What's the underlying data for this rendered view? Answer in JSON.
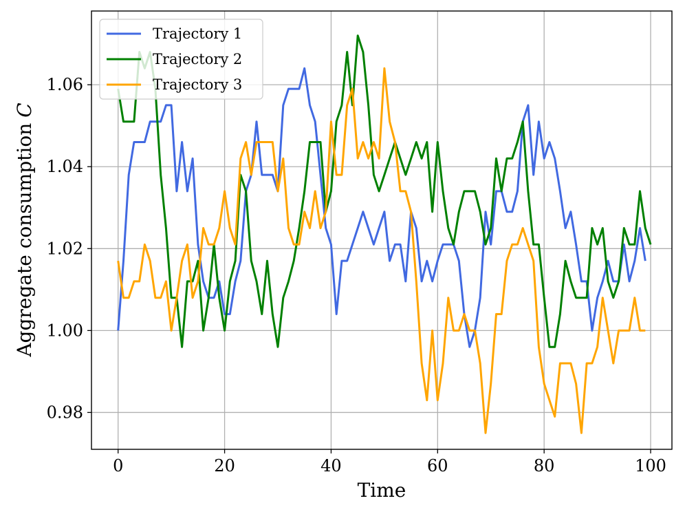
{
  "chart_data": {
    "type": "line",
    "xlabel": "Time",
    "ylabel": "Aggregate consumption",
    "ylabel_symbol": "C",
    "xlim": [
      -5,
      104
    ],
    "ylim": [
      0.971,
      1.078
    ],
    "xticks": [
      0,
      20,
      40,
      60,
      80,
      100
    ],
    "yticks": [
      0.98,
      1.0,
      1.02,
      1.04,
      1.06
    ],
    "xtick_labels": [
      "0",
      "20",
      "40",
      "60",
      "80",
      "100"
    ],
    "ytick_labels": [
      "0.98",
      "1.00",
      "1.02",
      "1.04",
      "1.06"
    ],
    "grid": true,
    "legend_position": "top-left",
    "series": [
      {
        "name": "Trajectory 1",
        "color": "#4169e1",
        "values": [
          1.0,
          1.017,
          1.038,
          1.046,
          1.046,
          1.046,
          1.051,
          1.051,
          1.051,
          1.055,
          1.055,
          1.034,
          1.046,
          1.034,
          1.042,
          1.021,
          1.012,
          1.008,
          1.008,
          1.012,
          1.004,
          1.004,
          1.012,
          1.017,
          1.034,
          1.038,
          1.051,
          1.038,
          1.038,
          1.038,
          1.034,
          1.055,
          1.059,
          1.059,
          1.059,
          1.064,
          1.055,
          1.051,
          1.038,
          1.025,
          1.021,
          1.004,
          1.017,
          1.017,
          1.021,
          1.025,
          1.029,
          1.025,
          1.021,
          1.025,
          1.029,
          1.017,
          1.021,
          1.021,
          1.012,
          1.029,
          1.025,
          1.012,
          1.017,
          1.012,
          1.017,
          1.021,
          1.021,
          1.021,
          1.017,
          1.004,
          0.996,
          1.0,
          1.008,
          1.029,
          1.021,
          1.034,
          1.034,
          1.029,
          1.029,
          1.034,
          1.051,
          1.055,
          1.038,
          1.051,
          1.042,
          1.046,
          1.042,
          1.034,
          1.025,
          1.029,
          1.021,
          1.012,
          1.012,
          1.0,
          1.008,
          1.012,
          1.017,
          1.012,
          1.012,
          1.021,
          1.012,
          1.017,
          1.025,
          1.017
        ]
      },
      {
        "name": "Trajectory 2",
        "color": "#008000",
        "values": [
          1.059,
          1.051,
          1.051,
          1.051,
          1.068,
          1.064,
          1.068,
          1.059,
          1.038,
          1.025,
          1.008,
          1.008,
          0.996,
          1.012,
          1.012,
          1.017,
          1.0,
          1.008,
          1.021,
          1.008,
          1.0,
          1.012,
          1.017,
          1.038,
          1.034,
          1.017,
          1.012,
          1.004,
          1.017,
          1.004,
          0.996,
          1.008,
          1.012,
          1.017,
          1.025,
          1.034,
          1.046,
          1.046,
          1.046,
          1.029,
          1.034,
          1.051,
          1.055,
          1.068,
          1.055,
          1.072,
          1.068,
          1.055,
          1.038,
          1.034,
          1.038,
          1.042,
          1.046,
          1.042,
          1.038,
          1.042,
          1.046,
          1.042,
          1.046,
          1.029,
          1.046,
          1.034,
          1.025,
          1.021,
          1.029,
          1.034,
          1.034,
          1.034,
          1.029,
          1.021,
          1.025,
          1.042,
          1.034,
          1.042,
          1.042,
          1.046,
          1.051,
          1.034,
          1.021,
          1.021,
          1.008,
          0.996,
          0.996,
          1.004,
          1.017,
          1.012,
          1.008,
          1.008,
          1.008,
          1.025,
          1.021,
          1.025,
          1.012,
          1.008,
          1.012,
          1.025,
          1.021,
          1.021,
          1.034,
          1.025,
          1.021
        ]
      },
      {
        "name": "Trajectory 3",
        "color": "#ffa500",
        "values": [
          1.017,
          1.008,
          1.008,
          1.012,
          1.012,
          1.021,
          1.017,
          1.008,
          1.008,
          1.012,
          1.0,
          1.008,
          1.017,
          1.021,
          1.008,
          1.012,
          1.025,
          1.021,
          1.021,
          1.025,
          1.034,
          1.025,
          1.021,
          1.042,
          1.046,
          1.038,
          1.046,
          1.046,
          1.046,
          1.046,
          1.034,
          1.042,
          1.025,
          1.021,
          1.021,
          1.029,
          1.025,
          1.034,
          1.025,
          1.029,
          1.051,
          1.038,
          1.038,
          1.055,
          1.059,
          1.042,
          1.046,
          1.042,
          1.046,
          1.042,
          1.064,
          1.051,
          1.046,
          1.034,
          1.034,
          1.029,
          1.012,
          0.992,
          0.983,
          1.0,
          0.983,
          0.992,
          1.008,
          1.0,
          1.0,
          1.004,
          1.0,
          1.0,
          0.992,
          0.975,
          0.987,
          1.004,
          1.004,
          1.017,
          1.021,
          1.021,
          1.025,
          1.021,
          1.017,
          0.996,
          0.987,
          0.983,
          0.979,
          0.992,
          0.992,
          0.992,
          0.987,
          0.975,
          0.992,
          0.992,
          0.996,
          1.008,
          1.0,
          0.992,
          1.0,
          1.0,
          1.0,
          1.008,
          1.0,
          1.0
        ]
      }
    ]
  }
}
